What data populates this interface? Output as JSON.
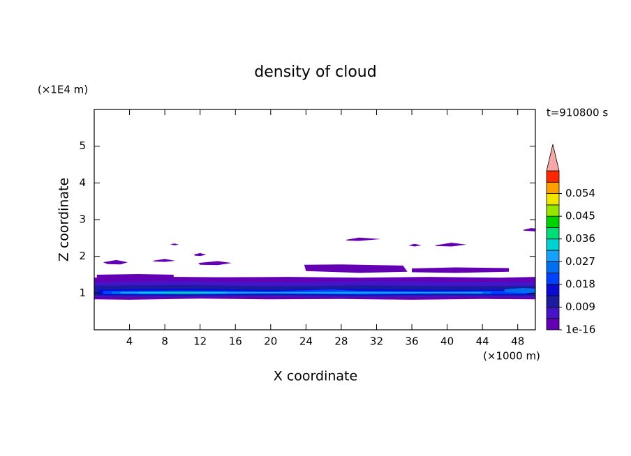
{
  "chart_data": {
    "type": "contour",
    "title": "density of cloud",
    "x_label": "X coordinate",
    "x_unit": "(×1000 m)",
    "y_label": "Z coordinate",
    "y_unit": "(×1E4 m)",
    "annotation": "t=910800 s",
    "xlim": [
      0,
      50
    ],
    "xticks": [
      4,
      8,
      12,
      16,
      20,
      24,
      28,
      32,
      36,
      40,
      44,
      48
    ],
    "ylim": [
      0,
      6
    ],
    "yticks": [
      1,
      2,
      3,
      4,
      5
    ],
    "colorbar": {
      "levels": [
        1e-16,
        0.0045,
        0.009,
        0.0135,
        0.018,
        0.0225,
        0.027,
        0.0315,
        0.036,
        0.0405,
        0.045,
        0.0495,
        0.054,
        0.0585,
        0.063
      ],
      "colors": [
        "#6400b4",
        "#4614c8",
        "#1c1ca0",
        "#0a0ad2",
        "#0040ff",
        "#006ef0",
        "#18a0ff",
        "#00d2d2",
        "#00dc78",
        "#00d200",
        "#96e600",
        "#f0e600",
        "#ffa000",
        "#ff2800"
      ],
      "ticks": [
        {
          "value": 1e-16,
          "label": "1e-16"
        },
        0.009,
        0.018,
        0.027,
        0.036,
        0.045,
        0.054
      ],
      "extend_color": "#f4a8a8"
    },
    "regions": [
      {
        "level": 1e-16,
        "x": [
          0,
          6,
          14,
          22,
          30,
          38,
          46,
          50,
          50,
          44,
          36,
          28,
          20,
          12,
          4,
          0
        ],
        "z": [
          1.42,
          1.45,
          1.43,
          1.44,
          1.42,
          1.44,
          1.42,
          1.44,
          0.83,
          0.84,
          0.82,
          0.84,
          0.83,
          0.85,
          0.82,
          0.83
        ]
      },
      {
        "level": 1e-16,
        "x": [
          0.3,
          5,
          9,
          9,
          4,
          0.3
        ],
        "z": [
          1.5,
          1.52,
          1.5,
          1.42,
          1.43,
          1.42
        ]
      },
      {
        "level": 1e-16,
        "x": [
          23.8,
          28,
          35,
          35.5,
          30,
          24
        ],
        "z": [
          1.77,
          1.78,
          1.75,
          1.58,
          1.55,
          1.6
        ]
      },
      {
        "level": 1e-16,
        "x": [
          36,
          41,
          47,
          47,
          41,
          36
        ],
        "z": [
          1.67,
          1.7,
          1.68,
          1.58,
          1.55,
          1.57
        ]
      },
      {
        "level": 1e-16,
        "x": [
          1,
          2.5,
          3.8,
          3,
          1.5
        ],
        "z": [
          1.84,
          1.9,
          1.84,
          1.78,
          1.79
        ]
      },
      {
        "level": 1e-16,
        "x": [
          6.6,
          8,
          9.2,
          8,
          6.8
        ],
        "z": [
          1.88,
          1.93,
          1.88,
          1.85,
          1.86
        ]
      },
      {
        "level": 1e-16,
        "x": [
          11.3,
          12,
          12.7,
          12,
          11.4
        ],
        "z": [
          2.05,
          2.09,
          2.04,
          2.01,
          2.02
        ]
      },
      {
        "level": 1e-16,
        "x": [
          11.8,
          14,
          15.6,
          14,
          12
        ],
        "z": [
          1.82,
          1.87,
          1.82,
          1.76,
          1.77
        ]
      },
      {
        "level": 1e-16,
        "x": [
          8.6,
          9.1,
          9.6,
          9.1
        ],
        "z": [
          2.33,
          2.35,
          2.32,
          2.3
        ]
      },
      {
        "level": 1e-16,
        "x": [
          28.5,
          30,
          32.5,
          30,
          28.7
        ],
        "z": [
          2.45,
          2.51,
          2.47,
          2.42,
          2.43
        ]
      },
      {
        "level": 1e-16,
        "x": [
          35.6,
          36.3,
          37.1,
          36.3
        ],
        "z": [
          2.3,
          2.34,
          2.3,
          2.27
        ]
      },
      {
        "level": 1e-16,
        "x": [
          38.6,
          40.5,
          42.2,
          40.5,
          38.8
        ],
        "z": [
          2.3,
          2.37,
          2.32,
          2.27,
          2.28
        ]
      },
      {
        "level": 1e-16,
        "x": [
          48.6,
          49.5,
          50,
          50,
          48.7
        ],
        "z": [
          2.72,
          2.77,
          2.76,
          2.68,
          2.7
        ]
      },
      {
        "level": 0.0045,
        "x": [
          0,
          8,
          16,
          24,
          32,
          40,
          50,
          50,
          42,
          34,
          26,
          18,
          10,
          2,
          0
        ],
        "z": [
          1.3,
          1.33,
          1.31,
          1.3,
          1.33,
          1.31,
          1.3,
          0.88,
          0.9,
          0.89,
          0.88,
          0.9,
          0.88,
          0.9,
          0.89
        ]
      },
      {
        "level": 0.009,
        "x": [
          0,
          10,
          20,
          30,
          40,
          50,
          50,
          40,
          30,
          20,
          10,
          0
        ],
        "z": [
          1.2,
          1.22,
          1.19,
          1.21,
          1.19,
          1.2,
          0.92,
          0.93,
          0.91,
          0.93,
          0.91,
          0.92
        ]
      },
      {
        "level": 0.0135,
        "x": [
          0.5,
          10,
          20,
          30,
          40,
          49.5,
          49.5,
          40,
          30,
          20,
          10,
          0.5
        ],
        "z": [
          1.1,
          1.12,
          1.09,
          1.11,
          1.09,
          1.1,
          0.95,
          0.96,
          0.94,
          0.96,
          0.94,
          0.95
        ]
      },
      {
        "level": 0.018,
        "x": [
          1,
          10,
          20,
          27,
          30,
          40,
          49,
          49,
          40,
          30,
          20,
          10,
          1
        ],
        "z": [
          1.06,
          1.07,
          1.05,
          1.1,
          1.06,
          1.05,
          1.06,
          0.97,
          0.98,
          0.96,
          0.98,
          0.96,
          0.97
        ]
      },
      {
        "level": 0.0225,
        "x": [
          2,
          10,
          20,
          30,
          38,
          45,
          45,
          38,
          30,
          20,
          10,
          2
        ],
        "z": [
          1.04,
          1.05,
          1.03,
          1.04,
          1.03,
          1.04,
          0.98,
          0.985,
          0.975,
          0.985,
          0.975,
          0.98
        ]
      },
      {
        "level": 0.0225,
        "x": [
          46.5,
          48.5,
          50,
          50,
          48,
          46.5
        ],
        "z": [
          1.1,
          1.14,
          1.12,
          1.0,
          1.01,
          1.03
        ]
      },
      {
        "level": 0.027,
        "x": [
          3,
          12,
          20,
          28,
          36,
          44,
          44,
          36,
          28,
          20,
          12,
          3
        ],
        "z": [
          1.03,
          1.035,
          1.025,
          1.03,
          1.025,
          1.03,
          0.99,
          0.995,
          0.985,
          0.995,
          0.985,
          0.99
        ]
      },
      {
        "level": 0.0315,
        "x": [
          5,
          10,
          15,
          15,
          10,
          5
        ],
        "z": [
          1.025,
          1.03,
          1.02,
          0.995,
          0.99,
          0.995
        ]
      },
      {
        "level": 0.036,
        "x": [
          8,
          10.5,
          12.5,
          12.5,
          10.5,
          8
        ],
        "z": [
          1.015,
          1.02,
          1.012,
          1.0,
          0.995,
          1.0
        ]
      }
    ]
  }
}
